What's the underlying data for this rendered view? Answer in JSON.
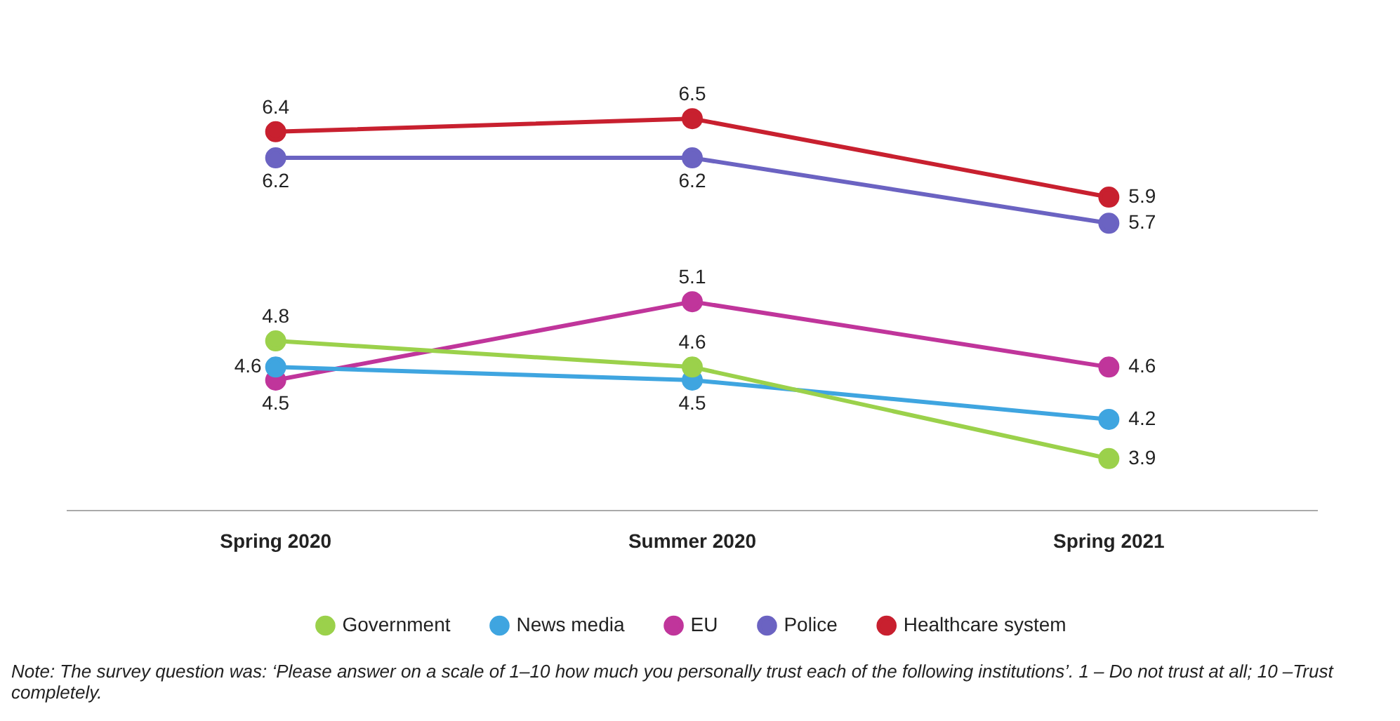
{
  "chart_data": {
    "type": "line",
    "categories": [
      "Spring 2020",
      "Summer 2020",
      "Spring 2021"
    ],
    "series": [
      {
        "name": "Government",
        "color": "#9bd14b",
        "values": [
          4.8,
          4.6,
          3.9
        ]
      },
      {
        "name": "News media",
        "color": "#3fa5e0",
        "values": [
          4.6,
          4.5,
          4.2
        ]
      },
      {
        "name": "EU",
        "color": "#c0359b",
        "values": [
          4.5,
          5.1,
          4.6
        ]
      },
      {
        "name": "Police",
        "color": "#6b63c2",
        "values": [
          6.2,
          6.2,
          5.7
        ]
      },
      {
        "name": "Healthcare system",
        "color": "#c8202f",
        "values": [
          6.4,
          6.5,
          5.9
        ]
      }
    ],
    "tick_labels": "x",
    "data_labels": true,
    "legend": "bottom",
    "grid": false,
    "marker": "circle",
    "line_style": "solid",
    "annotations": [
      "Note: The survey question was: ‘Please answer on a scale of 1–10 how much you personally trust each of the following institutions’. 1 – Do not trust at all; 10 –Trust completely."
    ]
  }
}
